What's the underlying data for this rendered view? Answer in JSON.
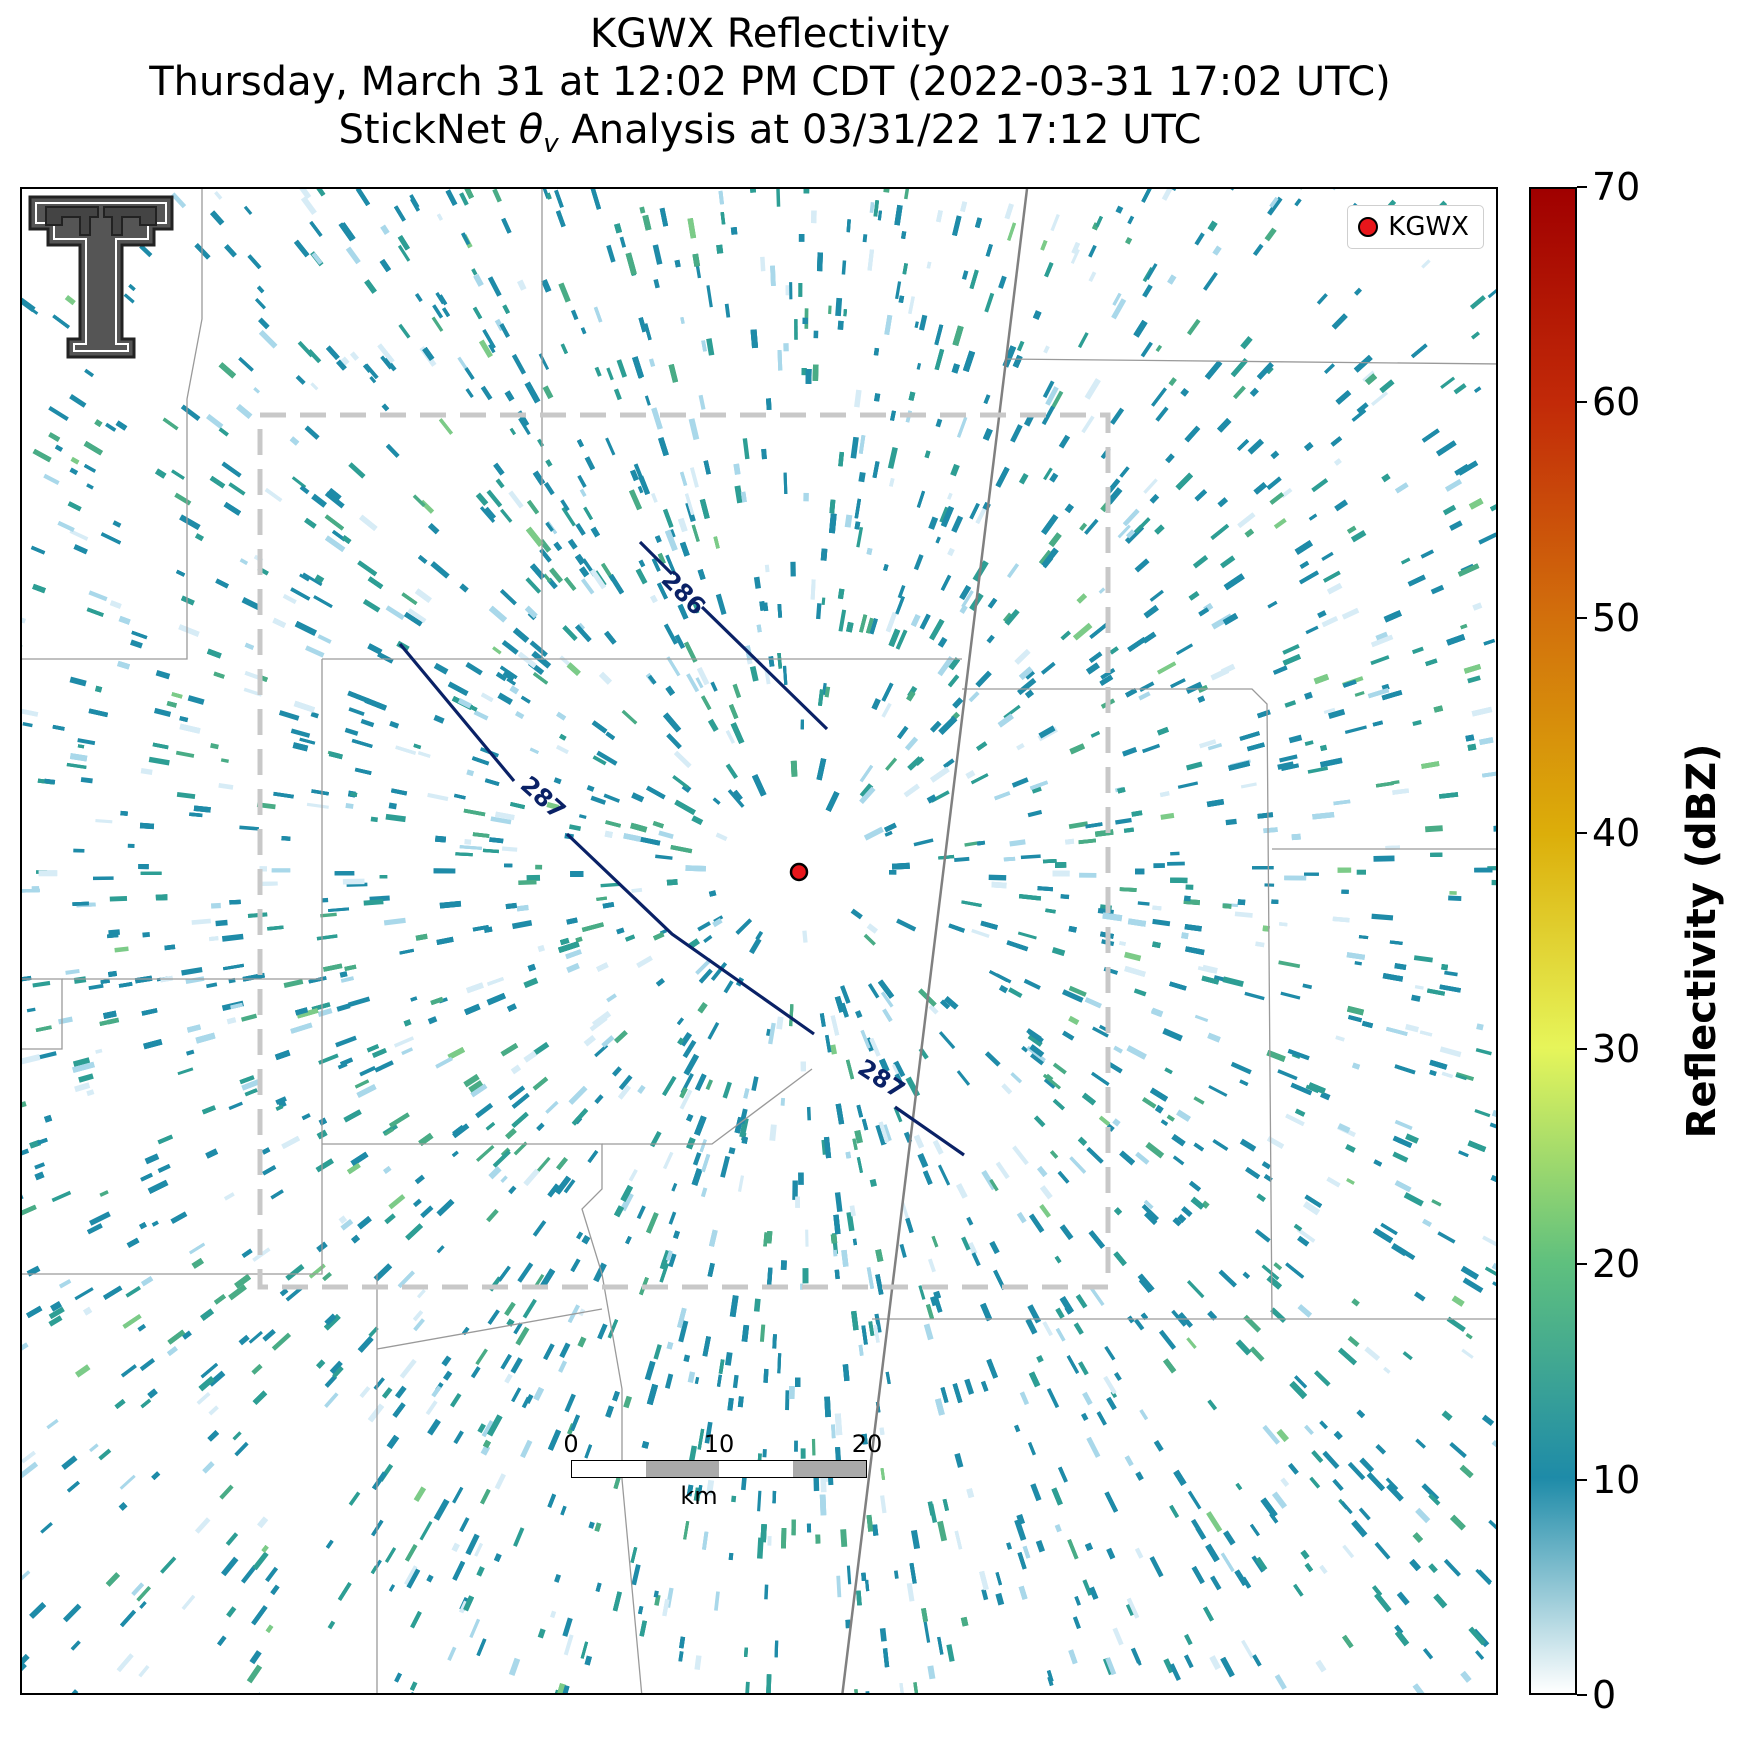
{
  "title": {
    "line1": "KGWX Reflectivity",
    "line2": "Thursday, March 31 at 12:02 PM CDT (2022-03-31 17:02 UTC)",
    "line3_prefix": "StickNet ",
    "line3_symbol": "θ",
    "line3_sub": "v",
    "line3_suffix": " Analysis at 03/31/22 17:12 UTC"
  },
  "legend": {
    "label": "KGWX",
    "marker_color": "#e8161b"
  },
  "contours": [
    {
      "label": "286",
      "color": "#0a2166"
    },
    {
      "label": "287",
      "color": "#0a2166"
    },
    {
      "label": "287",
      "color": "#0a2166"
    }
  ],
  "scalebar": {
    "ticks": [
      "0",
      "10",
      "20"
    ],
    "unit": "km"
  },
  "colorbar": {
    "title": "Reflectivity (dBZ)",
    "min": 0,
    "max": 70,
    "tick_labels": [
      "0",
      "10",
      "20",
      "30",
      "40",
      "50",
      "60",
      "70"
    ],
    "colors": [
      "#ffffff",
      "#1e8ba8",
      "#5fc07e",
      "#e6f55a",
      "#dcae0a",
      "#d2700c",
      "#c22a08",
      "#a00000"
    ]
  },
  "map": {
    "radar_site": "KGWX",
    "analysis_box_style": "dashed",
    "echo_colors": [
      "#1e8ba8",
      "#2d9e94",
      "#49ac86",
      "#7ccb88",
      "#a9d8ea",
      "#d7ecf6"
    ]
  },
  "logo": {
    "name": "Texas Tech Double T"
  }
}
